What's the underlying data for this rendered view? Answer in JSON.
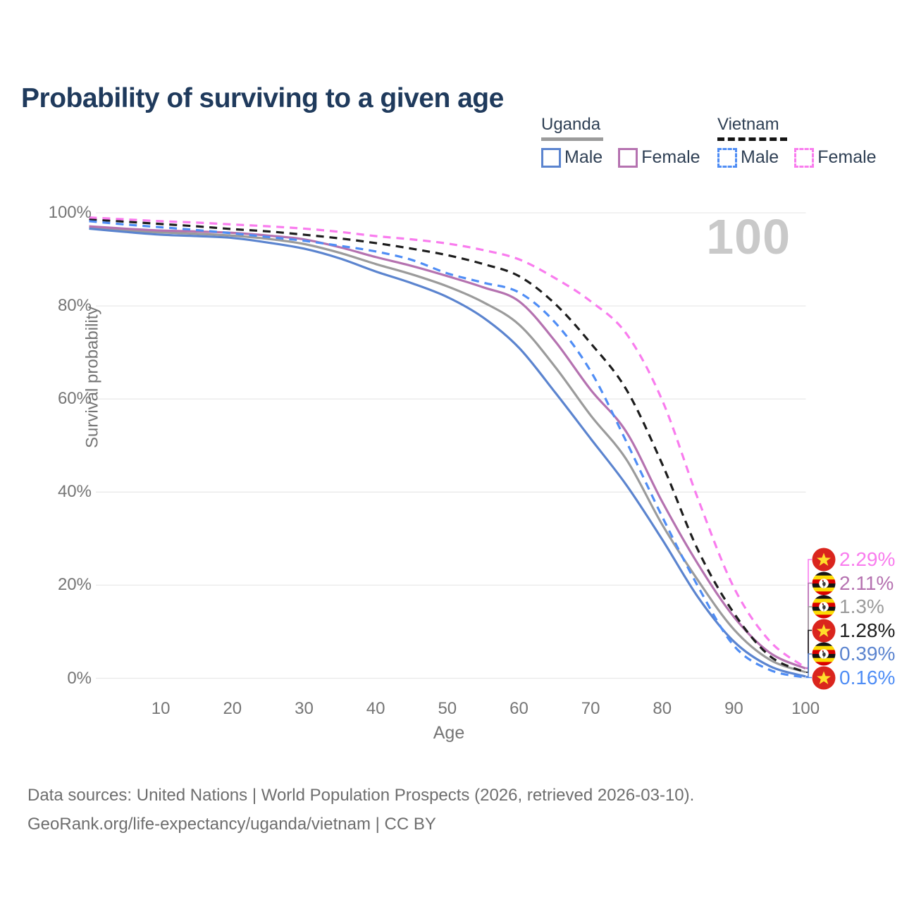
{
  "title": "Probability of surviving to a given age",
  "watermark": "100",
  "legend": {
    "groups": [
      {
        "title": "Uganda",
        "line_style": "solid",
        "rule_color": "#9b9b9b",
        "items": [
          {
            "label": "Male",
            "color": "#5b84cf"
          },
          {
            "label": "Female",
            "color": "#b572b0"
          }
        ]
      },
      {
        "title": "Vietnam",
        "line_style": "dashed",
        "rule_color": "#141414",
        "items": [
          {
            "label": "Male",
            "color": "#4f8df5"
          },
          {
            "label": "Female",
            "color": "#f97cee"
          }
        ]
      }
    ]
  },
  "axes": {
    "y_title": "Survival probability",
    "x_title": "Age",
    "y_ticks": [
      {
        "label": "100%",
        "value": 100
      },
      {
        "label": "80%",
        "value": 80
      },
      {
        "label": "60%",
        "value": 60
      },
      {
        "label": "40%",
        "value": 40
      },
      {
        "label": "20%",
        "value": 20
      },
      {
        "label": "0%",
        "value": 0
      }
    ],
    "x_ticks": [
      {
        "label": "10",
        "value": 10
      },
      {
        "label": "20",
        "value": 20
      },
      {
        "label": "30",
        "value": 30
      },
      {
        "label": "40",
        "value": 40
      },
      {
        "label": "50",
        "value": 50
      },
      {
        "label": "60",
        "value": 60
      },
      {
        "label": "70",
        "value": 70
      },
      {
        "label": "80",
        "value": 80
      },
      {
        "label": "90",
        "value": 90
      },
      {
        "label": "100",
        "value": 100
      }
    ]
  },
  "chart_data": {
    "type": "line",
    "title": "Probability of surviving to a given age",
    "xlabel": "Age",
    "ylabel": "Survival probability",
    "xlim": [
      0,
      100
    ],
    "ylim": [
      0,
      100
    ],
    "grid": "horizontal",
    "legend_position": "top-right",
    "ages": [
      0,
      5,
      10,
      15,
      20,
      25,
      30,
      35,
      40,
      45,
      50,
      55,
      60,
      65,
      70,
      75,
      80,
      85,
      90,
      95,
      100
    ],
    "series": [
      {
        "name": "Uganda Both sexes",
        "country": "Uganda",
        "color": "#9b9b9b",
        "dash": false,
        "values": [
          96.9,
          96.2,
          95.8,
          95.5,
          95.1,
          94.4,
          93.3,
          91.4,
          89.0,
          86.8,
          84.2,
          80.8,
          76.0,
          67.0,
          56.5,
          47.0,
          33.0,
          21.0,
          10.5,
          4.0,
          1.3
        ]
      },
      {
        "name": "Uganda Female",
        "country": "Uganda",
        "color": "#b572b0",
        "dash": false,
        "values": [
          97.1,
          96.6,
          96.2,
          96.0,
          95.7,
          95.1,
          94.3,
          92.6,
          90.5,
          88.6,
          86.4,
          84.0,
          81.0,
          72.5,
          62.0,
          52.9,
          37.9,
          24.5,
          13.2,
          5.5,
          2.11
        ]
      },
      {
        "name": "Uganda Male",
        "country": "Uganda",
        "color": "#5b84cf",
        "dash": false,
        "values": [
          96.6,
          95.9,
          95.3,
          95.0,
          94.6,
          93.6,
          92.3,
          90.2,
          87.4,
          84.9,
          81.9,
          77.5,
          71.0,
          61.5,
          51.5,
          41.5,
          29.8,
          17.4,
          7.9,
          2.6,
          0.39
        ]
      },
      {
        "name": "Vietnam Both sexes",
        "country": "Vietnam",
        "color": "#1d1d1d",
        "dash": true,
        "values": [
          98.6,
          98.1,
          97.6,
          97.1,
          96.5,
          96.0,
          95.3,
          94.5,
          93.5,
          92.3,
          90.9,
          89.0,
          86.4,
          80.5,
          72.0,
          62.0,
          46.0,
          27.5,
          14.0,
          4.8,
          1.28
        ]
      },
      {
        "name": "Vietnam Male",
        "country": "Vietnam",
        "color": "#4f8df5",
        "dash": true,
        "values": [
          98.2,
          97.5,
          96.9,
          96.3,
          95.6,
          94.8,
          94.0,
          92.9,
          91.7,
          89.9,
          87.0,
          85.0,
          82.9,
          76.5,
          66.0,
          50.8,
          34.7,
          19.7,
          7.0,
          1.8,
          0.16
        ]
      },
      {
        "name": "Vietnam Female",
        "country": "Vietnam",
        "color": "#f97cee",
        "dash": true,
        "values": [
          99.0,
          98.6,
          98.2,
          97.9,
          97.5,
          97.1,
          96.6,
          95.9,
          95.0,
          94.3,
          93.4,
          92.0,
          90.0,
          86.0,
          81.0,
          74.0,
          59.7,
          38.5,
          19.5,
          8.0,
          2.29
        ]
      }
    ],
    "end_labels": [
      {
        "value": "2.29%",
        "series": "Vietnam Female",
        "flag": "vietnam",
        "color": "#f97cee"
      },
      {
        "value": "2.11%",
        "series": "Uganda Female",
        "flag": "uganda",
        "color": "#b572b0"
      },
      {
        "value": "1.3%",
        "series": "Uganda Both sexes",
        "flag": "uganda",
        "color": "#9b9b9b"
      },
      {
        "value": "1.28%",
        "series": "Vietnam Both sexes",
        "flag": "vietnam",
        "color": "#1d1d1d"
      },
      {
        "value": "0.39%",
        "series": "Uganda Male",
        "flag": "uganda",
        "color": "#5b84cf"
      },
      {
        "value": "0.16%",
        "series": "Vietnam Male",
        "flag": "vietnam",
        "color": "#4f8df5"
      }
    ]
  },
  "footer": {
    "line1": "Data sources: United Nations | World Population Prospects (2026, retrieved 2026-03-10).",
    "line2": "GeoRank.org/life-expectancy/uganda/vietnam | CC BY"
  },
  "colors": {
    "title": "#1f3a5c",
    "axis_text": "#757575",
    "gridline": "#e9e9e9",
    "watermark": "#c9c9c9",
    "footer_text": "#6e6e6e",
    "uganda_male": "#5b84cf",
    "uganda_female": "#b572b0",
    "uganda_total": "#9b9b9b",
    "vietnam_male": "#4f8df5",
    "vietnam_female": "#f97cee",
    "vietnam_total": "#1d1d1d"
  }
}
